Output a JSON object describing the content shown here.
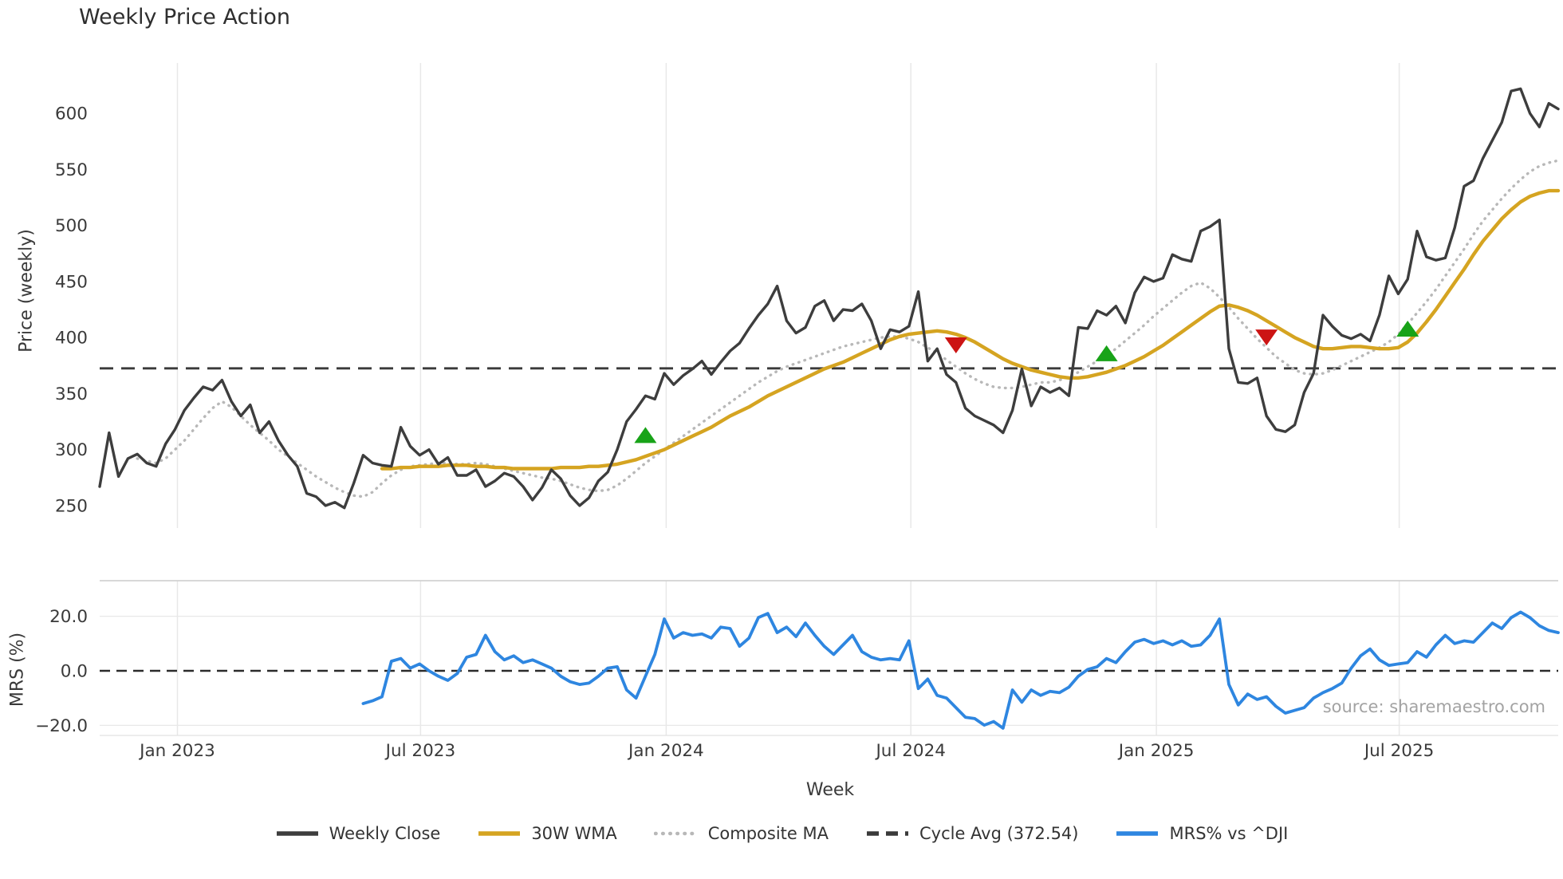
{
  "title": "Weekly Price Action",
  "source_note": "source: sharemaestro.com",
  "colors": {
    "weekly_close": "#3d3d3d",
    "wma30": "#d5a421",
    "composite": "#b8b8b8",
    "cycle_avg": "#3a3a3a",
    "mrs": "#2e86e0",
    "buy_marker": "#18a318",
    "sell_marker": "#cc1414",
    "grid": "#e8e8e8",
    "spine": "#cccccc",
    "tick_text": "#3a3a3a"
  },
  "legend": {
    "items": [
      {
        "label": "Weekly Close",
        "color": "#3d3d3d",
        "style": "solid"
      },
      {
        "label": "30W WMA",
        "color": "#d5a421",
        "style": "solid"
      },
      {
        "label": "Composite MA",
        "color": "#b8b8b8",
        "style": "dotted"
      },
      {
        "label": "Cycle Avg (372.54)",
        "color": "#3a3a3a",
        "style": "dashed"
      },
      {
        "label": "MRS% vs ^DJI",
        "color": "#2e86e0",
        "style": "solid"
      }
    ]
  },
  "chart_data": {
    "type": "line",
    "title": "Weekly Price Action",
    "x_label": "Week",
    "weeks_total": 156,
    "x_ticks": [
      {
        "label": "Jan 2023",
        "week": 8.26
      },
      {
        "label": "Jul 2023",
        "week": 34.1
      },
      {
        "label": "Jan 2024",
        "week": 60.2
      },
      {
        "label": "Jul 2024",
        "week": 86.2
      },
      {
        "label": "Jan 2025",
        "week": 112.3
      },
      {
        "label": "Jul 2025",
        "week": 138.1
      }
    ],
    "panels": [
      {
        "name": "price",
        "y_label": "Price (weekly)",
        "y_ticks": [
          250,
          300,
          350,
          400,
          450,
          500,
          550,
          600
        ],
        "y_range": [
          230,
          645
        ],
        "grid": "vertical-only",
        "series": [
          {
            "name": "Weekly Close",
            "style": "solid",
            "color": "#3d3d3d",
            "start_week": 0,
            "values": [
              267,
              315,
              276,
              292,
              296,
              288,
              285,
              305,
              318,
              335,
              346,
              356,
              353,
              362,
              343,
              330,
              340,
              315,
              325,
              308,
              295,
              285,
              261,
              258,
              250,
              253,
              248,
              270,
              295,
              288,
              286,
              285,
              320,
              303,
              295,
              300,
              287,
              293,
              277,
              277,
              282,
              267,
              272,
              279,
              276,
              267,
              255,
              266,
              282,
              274,
              259,
              250,
              257,
              272,
              280,
              300,
              325,
              336,
              348,
              345,
              368,
              358,
              366,
              372,
              379,
              367,
              378,
              388,
              395,
              408,
              420,
              430,
              446,
              415,
              404,
              409,
              428,
              433,
              415,
              425,
              424,
              430,
              415,
              390,
              407,
              405,
              410,
              441,
              379,
              390,
              367,
              360,
              337,
              330,
              326,
              322,
              315,
              335,
              372,
              339,
              356,
              351,
              355,
              348,
              409,
              408,
              424,
              420,
              428,
              413,
              440,
              454,
              450,
              453,
              474,
              470,
              468,
              495,
              499,
              505,
              390,
              360,
              359,
              364,
              330,
              318,
              316,
              322,
              351,
              368,
              420,
              410,
              402,
              399,
              403,
              397,
              420,
              455,
              439,
              452,
              495,
              472,
              469,
              471,
              498,
              535,
              540,
              560,
              576,
              592,
              620,
              622,
              600,
              588,
              609,
              604
            ]
          },
          {
            "name": "30W WMA",
            "style": "solid",
            "color": "#d5a421",
            "start_week": 30,
            "values": [
              283,
              283,
              284,
              284,
              285,
              285,
              285,
              286,
              286,
              286,
              285,
              285,
              284,
              284,
              283,
              283,
              283,
              283,
              283,
              284,
              284,
              284,
              285,
              285,
              286,
              287,
              289,
              291,
              294,
              297,
              300,
              304,
              308,
              312,
              316,
              320,
              325,
              330,
              334,
              338,
              343,
              348,
              352,
              356,
              360,
              364,
              368,
              372,
              375,
              378,
              382,
              386,
              390,
              394,
              398,
              401,
              403,
              404,
              405,
              406,
              405,
              403,
              400,
              396,
              391,
              386,
              381,
              377,
              374,
              371,
              369,
              367,
              365,
              364,
              364,
              365,
              367,
              369,
              372,
              375,
              379,
              383,
              388,
              393,
              399,
              405,
              411,
              417,
              423,
              428,
              429,
              427,
              424,
              420,
              415,
              410,
              405,
              400,
              396,
              392,
              390,
              390,
              391,
              392,
              392,
              391,
              390,
              390,
              391,
              396,
              404,
              414,
              425,
              437,
              449,
              461,
              474,
              486,
              496,
              506,
              514,
              521,
              526,
              529,
              531,
              531
            ]
          },
          {
            "name": "Composite MA",
            "style": "dotted",
            "color": "#b8b8b8",
            "start_week": 4,
            "values": [
              292,
              290,
              288,
              292,
              300,
              308,
              318,
              328,
              337,
              343,
              338,
              330,
              322,
              315,
              308,
              300,
              294,
              288,
              282,
              276,
              271,
              266,
              262,
              259,
              258,
              262,
              270,
              277,
              282,
              285,
              286,
              287,
              288,
              288,
              287,
              287,
              288,
              287,
              285,
              283,
              281,
              279,
              277,
              275,
              274,
              272,
              269,
              266,
              264,
              263,
              264,
              268,
              274,
              281,
              288,
              294,
              300,
              306,
              312,
              318,
              324,
              330,
              336,
              342,
              348,
              354,
              360,
              365,
              370,
              374,
              377,
              380,
              383,
              386,
              389,
              392,
              394,
              396,
              398,
              400,
              401,
              401,
              399,
              396,
              391,
              386,
              380,
              374,
              368,
              363,
              359,
              356,
              355,
              355,
              356,
              358,
              360,
              360,
              362,
              365,
              369,
              374,
              379,
              384,
              390,
              397,
              404,
              411,
              419,
              426,
              433,
              440,
              446,
              449,
              444,
              436,
              427,
              417,
              408,
              399,
              391,
              383,
              377,
              371,
              368,
              367,
              368,
              371,
              375,
              379,
              383,
              387,
              391,
              396,
              403,
              412,
              422,
              432,
              443,
              455,
              467,
              479,
              492,
              504,
              514,
              524,
              533,
              541,
              548,
              553,
              556,
              558
            ]
          },
          {
            "name": "Cycle Avg (372.54)",
            "style": "dashed",
            "color": "#3a3a3a",
            "value": 372.54
          }
        ],
        "markers": {
          "buy": {
            "shape": "triangle-up",
            "color": "#18a318",
            "points": [
              [
                58,
                313
              ],
              [
                107,
                386
              ],
              [
                139,
                408
              ]
            ]
          },
          "sell": {
            "shape": "triangle-down",
            "color": "#cc1414",
            "points": [
              [
                91,
                393
              ],
              [
                124,
                400
              ]
            ]
          }
        }
      },
      {
        "name": "mrs",
        "y_label": "MRS (%)",
        "y_ticks": [
          20,
          0,
          -20
        ],
        "y_tick_labels": [
          "20.0",
          "0.0",
          "−20.0"
        ],
        "y_range": [
          -23.7,
          33.0
        ],
        "zero_line": 0,
        "series": [
          {
            "name": "MRS% vs ^DJI",
            "style": "solid",
            "color": "#2e86e0",
            "start_week": 28,
            "values": [
              -12,
              -11,
              -9.5,
              3.5,
              4.5,
              1,
              2.5,
              0,
              -2,
              -3.5,
              -1,
              5,
              6,
              13,
              7,
              4,
              5.5,
              3,
              4,
              2.5,
              1,
              -2,
              -4,
              -5,
              -4.5,
              -2,
              1,
              1.5,
              -7,
              -10,
              -2,
              6,
              19,
              12,
              14,
              13,
              13.5,
              12,
              16,
              15.5,
              9,
              12,
              19.5,
              21,
              14,
              16,
              12.5,
              17.5,
              13,
              9,
              6,
              9.5,
              13,
              7,
              5,
              4,
              4.5,
              4,
              11,
              -6.5,
              -3,
              -9,
              -10,
              -13.5,
              -17,
              -17.5,
              -19.9,
              -18.6,
              -21,
              -7,
              -11.5,
              -7,
              -9,
              -7.5,
              -8,
              -6,
              -2,
              0.5,
              1.5,
              4.5,
              3,
              7,
              10.5,
              11.5,
              10,
              11,
              9.5,
              11,
              9,
              9.5,
              13,
              19,
              -5,
              -12.5,
              -8.5,
              -10.5,
              -9.5,
              -13,
              -15.5,
              -14.5,
              -13.5,
              -10,
              -8,
              -6.5,
              -4.5,
              1,
              5.5,
              8,
              4,
              2,
              2.5,
              3,
              7,
              5,
              9.5,
              13,
              10,
              11,
              10.5,
              14,
              17.5,
              15.5,
              19.5,
              21.5,
              19.5,
              16.5,
              14.8,
              14
            ]
          }
        ]
      }
    ]
  }
}
